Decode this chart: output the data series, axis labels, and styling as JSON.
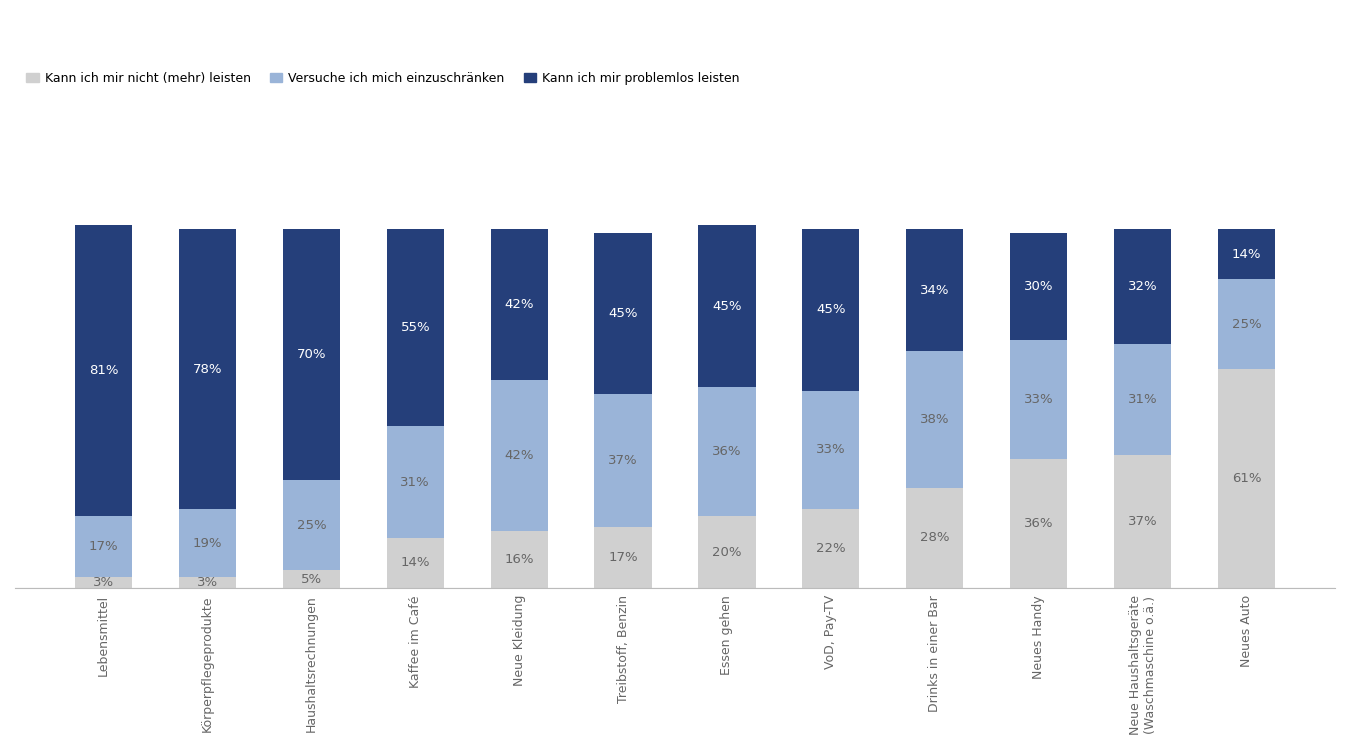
{
  "categories": [
    "Lebensmittel",
    "Körperpflegeprodukte",
    "Haushaltsrechnungen",
    "Kaffee im Café",
    "Neue Kleidung",
    "Treibstoff, Benzin",
    "Essen gehen",
    "VoD, Pay-TV",
    "Drinks in einer Bar",
    "Neues Handy",
    "Neue Haushaltsgeräte\n(Waschmaschine o.ä.)",
    "Neues Auto"
  ],
  "cannot_afford": [
    3,
    3,
    5,
    14,
    16,
    17,
    20,
    22,
    28,
    36,
    37,
    61
  ],
  "try_restrict": [
    17,
    19,
    25,
    31,
    42,
    37,
    36,
    33,
    38,
    33,
    31,
    25
  ],
  "can_afford": [
    81,
    78,
    70,
    55,
    42,
    45,
    45,
    45,
    34,
    30,
    32,
    14
  ],
  "color_cannot": "#d0d0d0",
  "color_restrict": "#9ab4d8",
  "color_can": "#253f7a",
  "legend_labels": [
    "Kann ich mir nicht (mehr) leisten",
    "Versuche ich mich einzuschränken",
    "Kann ich mir problemlos leisten"
  ],
  "text_color_white": "#ffffff",
  "text_color_dark": "#666666",
  "bar_width": 0.55,
  "fontsize_bar": 9.5,
  "fontsize_legend": 9,
  "fontsize_tick": 9,
  "ylim": [
    0,
    130
  ]
}
